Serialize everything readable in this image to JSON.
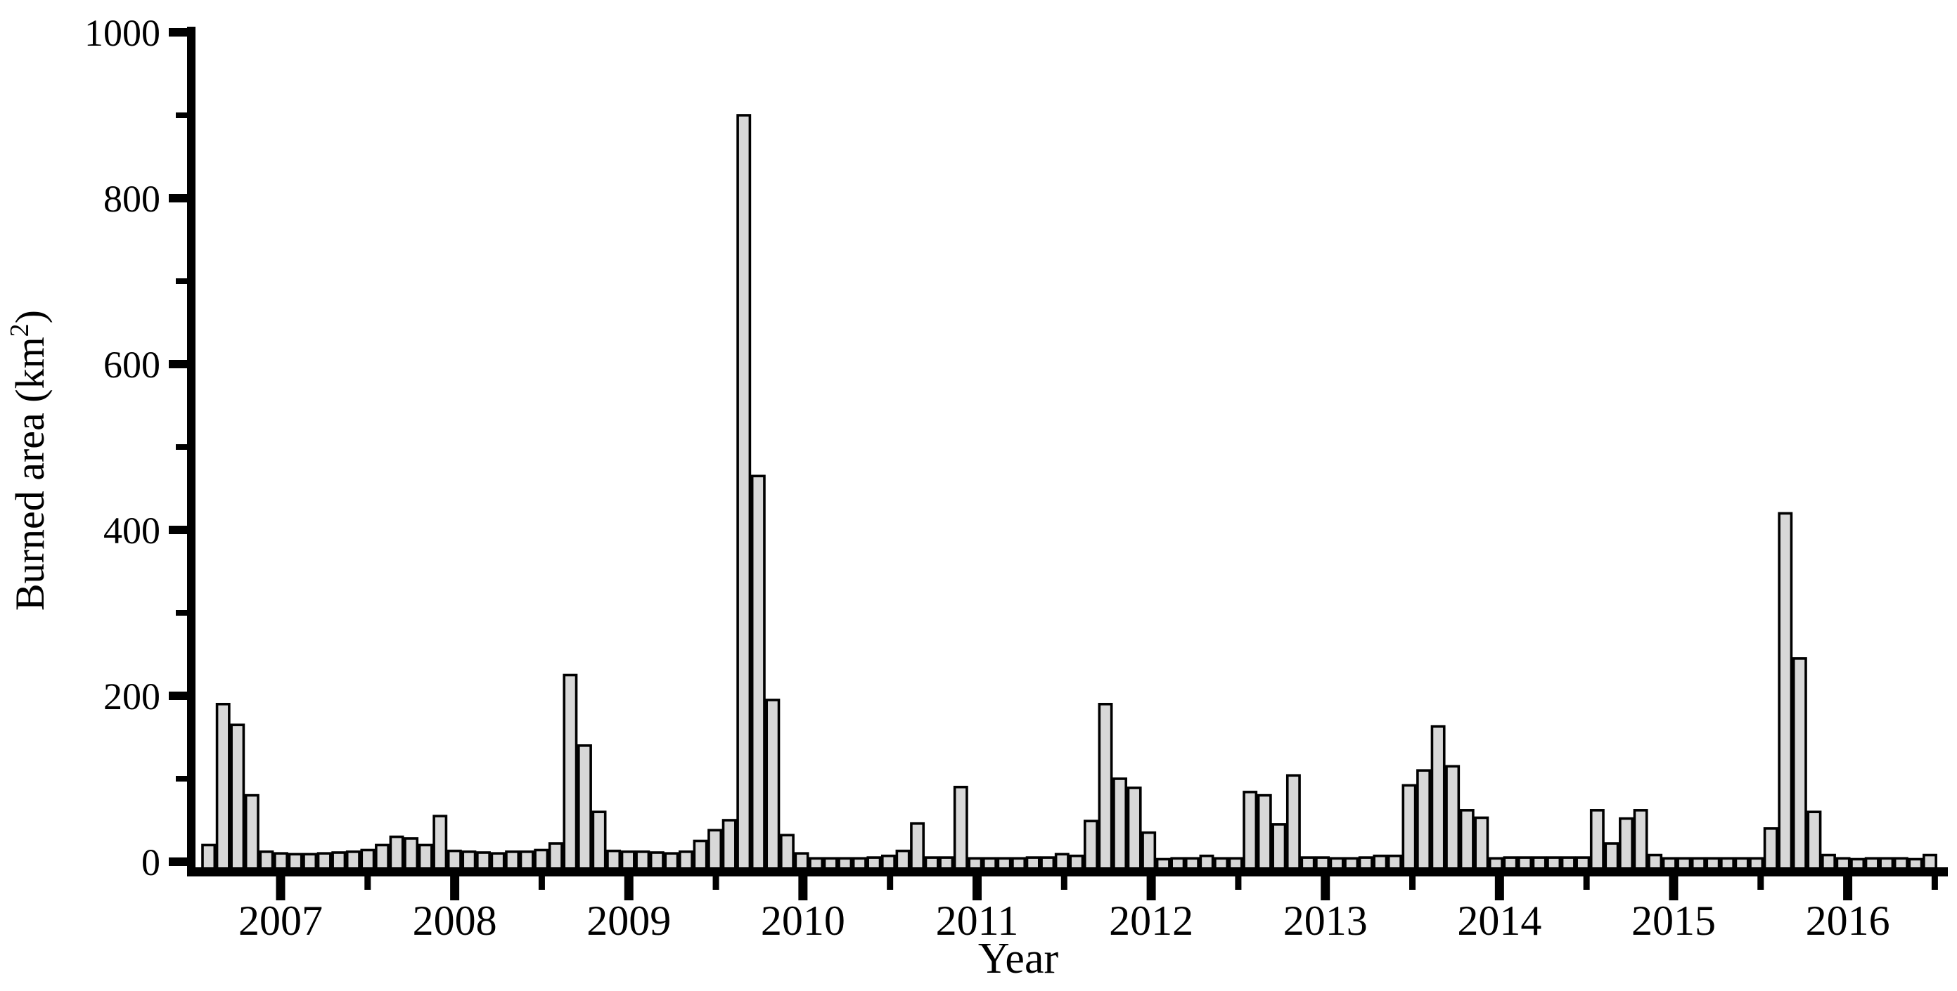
{
  "chart_data": {
    "type": "bar",
    "title": "",
    "xlabel": "Year",
    "ylabel": "Burned area (km2)",
    "ylabel_parts": {
      "pre": "Burned area (km",
      "sup": "2",
      "post": ")"
    },
    "legend": null,
    "grid": false,
    "y_axis": {
      "min": 0,
      "max": 1000,
      "major_tick_values": [
        0,
        200,
        400,
        600,
        800,
        1000
      ],
      "major_tick_labels": [
        "0",
        "200",
        "400",
        "600",
        "800",
        "1000"
      ],
      "minor_tick_values": [
        100,
        300,
        500,
        700,
        900
      ]
    },
    "x_axis": {
      "year_tick_labels": [
        "2007",
        "2008",
        "2009",
        "2010",
        "2011",
        "2012",
        "2013",
        "2014",
        "2015",
        "2016"
      ],
      "minor_ticks": "mid-year"
    },
    "series_description": "Monthly burned area, Aug 2006 - Jul 2016",
    "start_month": "2006-08",
    "bar_fill": "#d8d8d8",
    "bar_stroke": "#000000",
    "years": [
      {
        "year": 2006,
        "first_month": 8,
        "values": [
          20,
          190,
          165,
          80,
          12
        ]
      },
      {
        "year": 2007,
        "first_month": 1,
        "values": [
          10,
          9,
          9,
          10,
          11,
          12,
          14,
          20,
          30,
          28,
          20,
          55
        ]
      },
      {
        "year": 2008,
        "first_month": 1,
        "values": [
          13,
          12,
          11,
          10,
          12,
          12,
          14,
          22,
          225,
          140,
          60,
          13
        ]
      },
      {
        "year": 2009,
        "first_month": 1,
        "values": [
          12,
          12,
          11,
          10,
          12,
          25,
          38,
          50,
          900,
          465,
          195,
          32
        ]
      },
      {
        "year": 2010,
        "first_month": 1,
        "values": [
          10,
          4,
          4,
          4,
          4,
          5,
          7,
          13,
          46,
          5,
          5,
          90
        ]
      },
      {
        "year": 2011,
        "first_month": 1,
        "values": [
          4,
          4,
          4,
          4,
          5,
          5,
          9,
          7,
          49,
          190,
          100,
          89
        ]
      },
      {
        "year": 2012,
        "first_month": 1,
        "values": [
          35,
          3,
          4,
          4,
          7,
          4,
          4,
          84,
          80,
          45,
          104,
          5
        ]
      },
      {
        "year": 2013,
        "first_month": 1,
        "values": [
          5,
          4,
          4,
          5,
          7,
          7,
          92,
          110,
          163,
          115,
          62,
          53
        ]
      },
      {
        "year": 2014,
        "first_month": 1,
        "values": [
          4,
          5,
          5,
          5,
          5,
          5,
          5,
          62,
          22,
          52,
          62,
          8
        ]
      },
      {
        "year": 2015,
        "first_month": 1,
        "values": [
          4,
          4,
          4,
          4,
          4,
          4,
          4,
          40,
          420,
          245,
          60,
          8
        ]
      },
      {
        "year": 2016,
        "first_month": 1,
        "values": [
          4,
          3,
          4,
          4,
          4,
          3,
          8
        ]
      }
    ]
  }
}
